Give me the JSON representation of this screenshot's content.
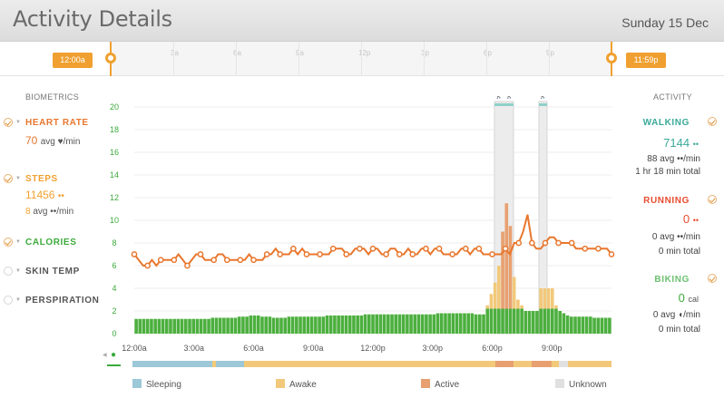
{
  "header": {
    "title": "Activity Details",
    "date": "Sunday 15 Dec"
  },
  "timeline": {
    "start_label": "12:00a",
    "end_label": "11:59p",
    "ticks": [
      "3a",
      "6a",
      "9a",
      "12p",
      "3p",
      "6p",
      "9p"
    ]
  },
  "biometrics": {
    "heading": "BIOMETRICS",
    "heart_rate": {
      "label": "HEART RATE",
      "value": "70",
      "unit": "avg ♥/min"
    },
    "steps": {
      "label": "STEPS",
      "value": "11456",
      "icon": "••",
      "sub_value": "8",
      "sub_unit": "avg ••/min"
    },
    "calories": {
      "label": "CALORIES"
    },
    "skin_temp": {
      "label": "SKIN TEMP"
    },
    "perspiration": {
      "label": "PERSPIRATION"
    }
  },
  "activity": {
    "heading": "ACTIVITY",
    "walking": {
      "label": "WALKING",
      "value": "7144",
      "avg": "88 avg ••/min",
      "total": "1 hr 18 min total"
    },
    "running": {
      "label": "RUNNING",
      "value": "0",
      "avg": "0 avg ••/min",
      "total": "0 min total"
    },
    "biking": {
      "label": "BIKING",
      "value": "0",
      "unit": "cal",
      "avg": "0 avg ◖/min",
      "total": "0 min total"
    }
  },
  "legend": [
    {
      "label": "Sleeping",
      "color": "#9cc8d8"
    },
    {
      "label": "Awake",
      "color": "#f2c97a"
    },
    {
      "label": "Active",
      "color": "#e8a070"
    },
    {
      "label": "Unknown",
      "color": "#e0e0e0"
    }
  ],
  "colors": {
    "orange": "#e8772e",
    "green": "#4caf3e",
    "steps_orange": "#f0a030",
    "bar_awake": "#f2c97a",
    "bar_active": "#e8a070"
  },
  "chart_data": {
    "type": "bar",
    "x_tick_labels": [
      "12:00a",
      "3:00a",
      "6:00a",
      "9:00a",
      "12:00p",
      "3:00p",
      "6:00p",
      "9:00p"
    ],
    "y_tick_labels": [
      "0",
      "2",
      "4",
      "6",
      "8",
      "10",
      "12",
      "14",
      "16",
      "18",
      "20"
    ],
    "ylim": [
      0,
      20
    ],
    "series": [
      {
        "type": "bar",
        "values": [
          1.3,
          1.3,
          1.3,
          1.3,
          1.3,
          1.3,
          1.3,
          1.3,
          1.3,
          1.3,
          1.3,
          1.3,
          1.3,
          1.3,
          1.3,
          1.3,
          1.3,
          1.3,
          1.3,
          1.3,
          1.4,
          1.4,
          1.4,
          1.4,
          1.4,
          1.4,
          1.4,
          1.5,
          1.5,
          1.5,
          1.6,
          1.6,
          1.6,
          1.5,
          1.5,
          1.5,
          1.4,
          1.4,
          1.4,
          1.4,
          1.5,
          1.5,
          1.5,
          1.5,
          1.5,
          1.5,
          1.5,
          1.5,
          1.5,
          1.5,
          1.6,
          1.6,
          1.6,
          1.6,
          1.6,
          1.6,
          1.6,
          1.6,
          1.6,
          1.6,
          1.7,
          1.7,
          1.7,
          1.7,
          1.7,
          1.7,
          1.7,
          1.7,
          1.7,
          1.7,
          1.7,
          1.7,
          1.7,
          1.7,
          1.7,
          1.7,
          1.7,
          1.7,
          1.7,
          1.8,
          1.8,
          1.8,
          1.8,
          1.8,
          1.8,
          1.8,
          1.8,
          1.8,
          1.8,
          1.7,
          1.7,
          1.7,
          2.5,
          3.5,
          4.5,
          6.0,
          9.0,
          11.5,
          9.5,
          5.0,
          3.0,
          2.5,
          2.0,
          2.0,
          2.0,
          2.0,
          4.0,
          4.0,
          4.0,
          4.0,
          2.5,
          2.0,
          1.8,
          1.6,
          1.5,
          1.5,
          1.5,
          1.5,
          1.5,
          1.5,
          1.4,
          1.4,
          1.4,
          1.4,
          1.4
        ]
      },
      {
        "type": "line",
        "values": [
          7.0,
          6.5,
          6.0,
          6.0,
          6.5,
          6.0,
          6.5,
          6.5,
          6.5,
          6.5,
          7.0,
          6.5,
          6.0,
          6.5,
          7.0,
          7.0,
          6.5,
          6.5,
          6.5,
          7.0,
          7.0,
          6.5,
          6.5,
          6.5,
          6.5,
          6.5,
          7.0,
          6.5,
          6.5,
          6.5,
          7.0,
          7.0,
          7.5,
          7.0,
          7.0,
          7.0,
          7.5,
          7.0,
          7.5,
          7.0,
          7.0,
          7.0,
          7.0,
          7.0,
          7.0,
          7.5,
          7.5,
          7.5,
          7.0,
          7.0,
          7.5,
          7.5,
          7.5,
          7.0,
          7.5,
          7.5,
          7.0,
          7.0,
          7.5,
          7.5,
          7.0,
          7.0,
          7.5,
          7.0,
          7.0,
          7.5,
          7.5,
          7.0,
          7.5,
          7.5,
          7.0,
          7.0,
          7.0,
          7.0,
          7.5,
          7.5,
          7.0,
          7.5,
          7.5,
          7.0,
          7.0,
          7.0,
          7.0,
          7.0,
          7.5,
          7.0,
          8.0,
          8.0,
          9.0,
          10.5,
          8.0,
          7.5,
          7.5,
          8.0,
          8.5,
          8.5,
          8.0,
          8.0,
          8.0,
          8.0,
          7.5,
          7.5,
          7.5,
          7.5,
          7.5,
          7.5,
          7.5,
          7.5,
          7.0
        ]
      }
    ]
  }
}
